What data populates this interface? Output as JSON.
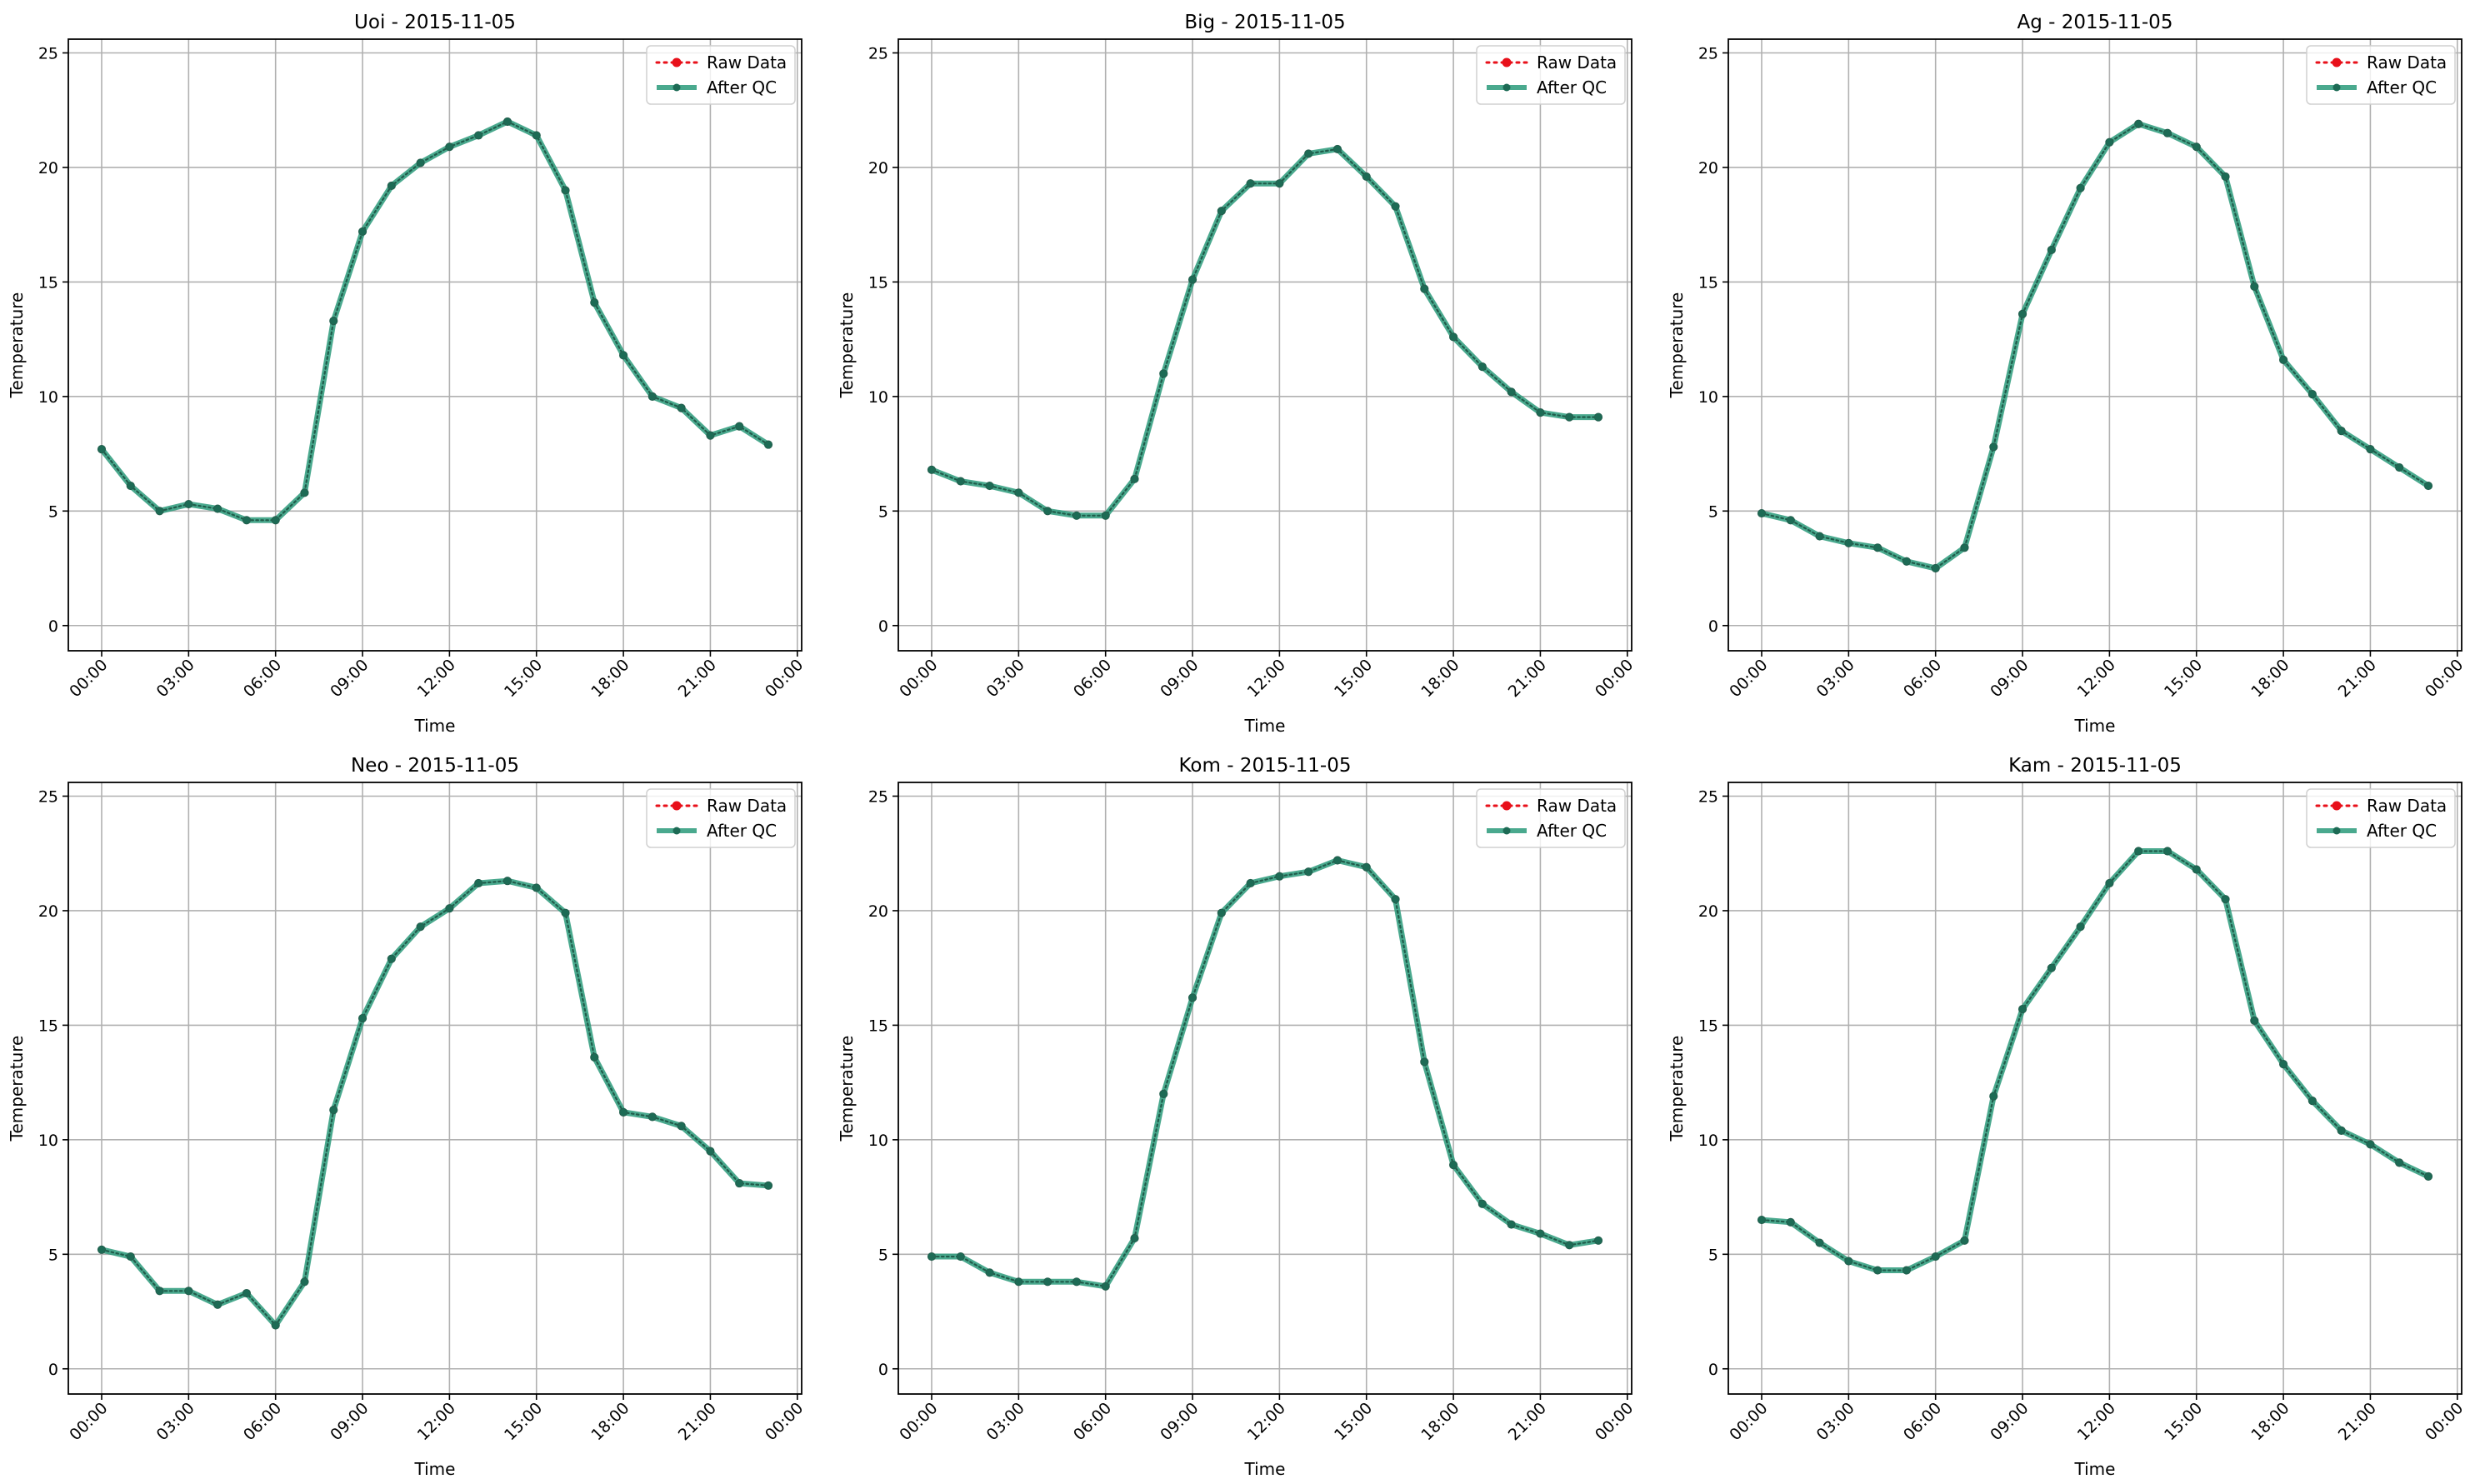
{
  "chart_data": [
    {
      "type": "line",
      "title": "Uoi - 2015-11-05",
      "xlabel": "Time",
      "ylabel": "Temperature",
      "x_ticks": [
        "00:00",
        "03:00",
        "06:00",
        "09:00",
        "12:00",
        "15:00",
        "18:00",
        "21:00",
        "00:00"
      ],
      "y_ticks": [
        0,
        5,
        10,
        15,
        20,
        25
      ],
      "ylim": [
        -1.1,
        25.6
      ],
      "x_hours": [
        0,
        1,
        2,
        3,
        4,
        5,
        6,
        7,
        8,
        9,
        10,
        11,
        12,
        13,
        14,
        15,
        16,
        17,
        18,
        19,
        20,
        21,
        22,
        23
      ],
      "series": [
        {
          "name": "Raw Data",
          "values": [
            7.7,
            6.1,
            5.0,
            5.3,
            5.1,
            4.6,
            4.6,
            5.8,
            13.3,
            17.2,
            19.2,
            20.2,
            20.9,
            21.4,
            22.0,
            21.4,
            19.0,
            14.1,
            11.8,
            10.0,
            9.5,
            8.3,
            8.7,
            7.9
          ]
        },
        {
          "name": "After QC",
          "values": [
            7.7,
            6.1,
            5.0,
            5.3,
            5.1,
            4.6,
            4.6,
            5.8,
            13.3,
            17.2,
            19.2,
            20.2,
            20.9,
            21.4,
            22.0,
            21.4,
            19.0,
            14.1,
            11.8,
            10.0,
            9.5,
            8.3,
            8.7,
            7.9
          ]
        }
      ],
      "grid": true,
      "legend_position": "upper right"
    },
    {
      "type": "line",
      "title": "Big - 2015-11-05",
      "xlabel": "Time",
      "ylabel": "Temperature",
      "x_ticks": [
        "00:00",
        "03:00",
        "06:00",
        "09:00",
        "12:00",
        "15:00",
        "18:00",
        "21:00",
        "00:00"
      ],
      "y_ticks": [
        0,
        5,
        10,
        15,
        20,
        25
      ],
      "ylim": [
        -1.1,
        25.6
      ],
      "x_hours": [
        0,
        1,
        2,
        3,
        4,
        5,
        6,
        7,
        8,
        9,
        10,
        11,
        12,
        13,
        14,
        15,
        16,
        17,
        18,
        19,
        20,
        21,
        22,
        23
      ],
      "series": [
        {
          "name": "Raw Data",
          "values": [
            6.8,
            6.3,
            6.1,
            5.8,
            5.0,
            4.8,
            4.8,
            6.4,
            11.0,
            15.1,
            18.1,
            19.3,
            19.3,
            20.6,
            20.8,
            19.6,
            18.3,
            14.7,
            12.6,
            11.3,
            10.2,
            9.3,
            9.1,
            9.1
          ]
        },
        {
          "name": "After QC",
          "values": [
            6.8,
            6.3,
            6.1,
            5.8,
            5.0,
            4.8,
            4.8,
            6.4,
            11.0,
            15.1,
            18.1,
            19.3,
            19.3,
            20.6,
            20.8,
            19.6,
            18.3,
            14.7,
            12.6,
            11.3,
            10.2,
            9.3,
            9.1,
            9.1
          ]
        }
      ],
      "grid": true,
      "legend_position": "upper right"
    },
    {
      "type": "line",
      "title": "Ag - 2015-11-05",
      "xlabel": "Time",
      "ylabel": "Temperature",
      "x_ticks": [
        "00:00",
        "03:00",
        "06:00",
        "09:00",
        "12:00",
        "15:00",
        "18:00",
        "21:00",
        "00:00"
      ],
      "y_ticks": [
        0,
        5,
        10,
        15,
        20,
        25
      ],
      "ylim": [
        -1.1,
        25.6
      ],
      "x_hours": [
        0,
        1,
        2,
        3,
        4,
        5,
        6,
        7,
        8,
        9,
        10,
        11,
        12,
        13,
        14,
        15,
        16,
        17,
        18,
        19,
        20,
        21,
        22,
        23
      ],
      "series": [
        {
          "name": "Raw Data",
          "values": [
            4.9,
            4.6,
            3.9,
            3.6,
            3.4,
            2.8,
            2.5,
            3.4,
            7.8,
            13.6,
            16.4,
            19.1,
            21.1,
            21.9,
            21.5,
            20.9,
            19.6,
            14.8,
            11.6,
            10.1,
            8.5,
            7.7,
            6.9,
            6.1
          ]
        },
        {
          "name": "After QC",
          "values": [
            4.9,
            4.6,
            3.9,
            3.6,
            3.4,
            2.8,
            2.5,
            3.4,
            7.8,
            13.6,
            16.4,
            19.1,
            21.1,
            21.9,
            21.5,
            20.9,
            19.6,
            14.8,
            11.6,
            10.1,
            8.5,
            7.7,
            6.9,
            6.1
          ]
        }
      ],
      "grid": true,
      "legend_position": "upper right"
    },
    {
      "type": "line",
      "title": "Neo - 2015-11-05",
      "xlabel": "Time",
      "ylabel": "Temperature",
      "x_ticks": [
        "00:00",
        "03:00",
        "06:00",
        "09:00",
        "12:00",
        "15:00",
        "18:00",
        "21:00",
        "00:00"
      ],
      "y_ticks": [
        0,
        5,
        10,
        15,
        20,
        25
      ],
      "ylim": [
        -1.1,
        25.6
      ],
      "x_hours": [
        0,
        1,
        2,
        3,
        4,
        5,
        6,
        7,
        8,
        9,
        10,
        11,
        12,
        13,
        14,
        15,
        16,
        17,
        18,
        19,
        20,
        21,
        22,
        23
      ],
      "series": [
        {
          "name": "Raw Data",
          "values": [
            5.2,
            4.9,
            3.4,
            3.4,
            2.8,
            3.3,
            1.9,
            3.8,
            11.3,
            15.3,
            17.9,
            19.3,
            20.1,
            21.2,
            21.3,
            21.0,
            19.9,
            13.6,
            11.2,
            11.0,
            10.6,
            9.5,
            8.1,
            8.0
          ]
        },
        {
          "name": "After QC",
          "values": [
            5.2,
            4.9,
            3.4,
            3.4,
            2.8,
            3.3,
            1.9,
            3.8,
            11.3,
            15.3,
            17.9,
            19.3,
            20.1,
            21.2,
            21.3,
            21.0,
            19.9,
            13.6,
            11.2,
            11.0,
            10.6,
            9.5,
            8.1,
            8.0
          ]
        }
      ],
      "grid": true,
      "legend_position": "upper right"
    },
    {
      "type": "line",
      "title": "Kom - 2015-11-05",
      "xlabel": "Time",
      "ylabel": "Temperature",
      "x_ticks": [
        "00:00",
        "03:00",
        "06:00",
        "09:00",
        "12:00",
        "15:00",
        "18:00",
        "21:00",
        "00:00"
      ],
      "y_ticks": [
        0,
        5,
        10,
        15,
        20,
        25
      ],
      "ylim": [
        -1.1,
        25.6
      ],
      "x_hours": [
        0,
        1,
        2,
        3,
        4,
        5,
        6,
        7,
        8,
        9,
        10,
        11,
        12,
        13,
        14,
        15,
        16,
        17,
        18,
        19,
        20,
        21,
        22,
        23
      ],
      "series": [
        {
          "name": "Raw Data",
          "values": [
            4.9,
            4.9,
            4.2,
            3.8,
            3.8,
            3.8,
            3.6,
            5.7,
            12.0,
            16.2,
            19.9,
            21.2,
            21.5,
            21.7,
            22.2,
            21.9,
            20.5,
            13.4,
            8.9,
            7.2,
            6.3,
            5.9,
            5.4,
            5.6
          ]
        },
        {
          "name": "After QC",
          "values": [
            4.9,
            4.9,
            4.2,
            3.8,
            3.8,
            3.8,
            3.6,
            5.7,
            12.0,
            16.2,
            19.9,
            21.2,
            21.5,
            21.7,
            22.2,
            21.9,
            20.5,
            13.4,
            8.9,
            7.2,
            6.3,
            5.9,
            5.4,
            5.6
          ]
        }
      ],
      "grid": true,
      "legend_position": "upper right"
    },
    {
      "type": "line",
      "title": "Kam - 2015-11-05",
      "xlabel": "Time",
      "ylabel": "Temperature",
      "x_ticks": [
        "00:00",
        "03:00",
        "06:00",
        "09:00",
        "12:00",
        "15:00",
        "18:00",
        "21:00",
        "00:00"
      ],
      "y_ticks": [
        0,
        5,
        10,
        15,
        20,
        25
      ],
      "ylim": [
        -1.1,
        25.6
      ],
      "x_hours": [
        0,
        1,
        2,
        3,
        4,
        5,
        6,
        7,
        8,
        9,
        10,
        11,
        12,
        13,
        14,
        15,
        16,
        17,
        18,
        19,
        20,
        21,
        22,
        23
      ],
      "series": [
        {
          "name": "Raw Data",
          "values": [
            6.5,
            6.4,
            5.5,
            4.7,
            4.3,
            4.3,
            4.9,
            5.6,
            11.9,
            15.7,
            17.5,
            19.3,
            21.2,
            22.6,
            22.6,
            21.8,
            20.5,
            15.2,
            13.3,
            11.7,
            10.4,
            9.8,
            9.0,
            8.4
          ]
        },
        {
          "name": "After QC",
          "values": [
            6.5,
            6.4,
            5.5,
            4.7,
            4.3,
            4.3,
            4.9,
            5.6,
            11.9,
            15.7,
            17.5,
            19.3,
            21.2,
            22.6,
            22.6,
            21.8,
            20.5,
            15.2,
            13.3,
            11.7,
            10.4,
            9.8,
            9.0,
            8.4
          ]
        }
      ],
      "grid": true,
      "legend_position": "upper right"
    }
  ],
  "style": {
    "raw_color": "#e8101a",
    "qc_color": "#2a9a7a",
    "grid_color": "#b0b0b0"
  }
}
